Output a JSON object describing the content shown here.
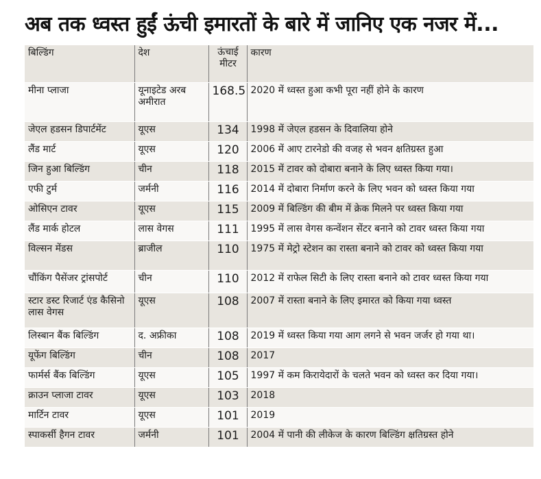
{
  "headline": "अब तक ध्वस्त हुईं ऊंची इमारतों के बारे में जानिए एक नजर में...",
  "table": {
    "headers": {
      "building": "बिल्डिंग",
      "country": "देश",
      "height_line1": "ऊंचाई",
      "height_line2": "मीटर",
      "reason": "कारण"
    },
    "rows": [
      {
        "building": "मीना प्लाजा",
        "country": "यूनाइटेड अरब अमीरात",
        "height": "168.5",
        "reason": "2020 में ध्वस्त हुआ  कभी पूरा नहीं होने के कारण"
      },
      {
        "building": "जेएल हडसन डिपार्टमेंट",
        "country": "यूएस",
        "height": "134",
        "reason": "1998 में जेएल हडसन के दिवालिया होने"
      },
      {
        "building": "लैंड मार्ट",
        "country": "यूएस",
        "height": "120",
        "reason": "2006 में आए टारनेडो की वजह से भवन क्षतिग्रस्त हुआ"
      },
      {
        "building": "जिन हुआ बिल्डिंग",
        "country": "चीन",
        "height": "118",
        "reason": "2015 में टावर को दोबारा बनाने के लिए ध्वस्त किया गया।"
      },
      {
        "building": "एफी टुर्म",
        "country": "जर्मनी",
        "height": "116",
        "reason": "2014 में दोबारा निर्माण करने के लिए भवन को ध्वस्त किया गया"
      },
      {
        "building": "ओसिएन टावर",
        "country": "यूएस",
        "height": "115",
        "reason": "2009 में बिल्डिंग की बीम में क्रेक मिलने पर ध्वस्त किया गया"
      },
      {
        "building": "लैंड मार्क होटल",
        "country": "लास वेगस",
        "height": "111",
        "reason": "1995 में लास वेगस कन्वेंशन सेंटर बनाने को टावर ध्वस्त किया गया"
      },
      {
        "building": "विल्सन मेंडस",
        "country": "ब्राजील",
        "height": "110",
        "reason": "1975 में मेट्रो स्टेशन का रास्ता बनाने को टावर को ध्वस्त किया गया"
      },
      {
        "building": "चौंकिंग पैसेंजर ट्रांसपोर्ट",
        "country": "चीन",
        "height": "110",
        "reason": "2012 में राफेल सिटी के लिए रास्ता बनाने को टावर ध्वस्त किया गया"
      },
      {
        "building": "स्टार डस्ट रिजार्ट एंड कैसिनो लास वेगस",
        "country": "यूएस",
        "height": "108",
        "reason": "2007 में रास्ता बनाने के लिए इमारत को किया गया ध्वस्त"
      },
      {
        "building": "लिस्बान बैंक बिल्डिंग",
        "country": "द. अफ्रीका",
        "height": "108",
        "reason": "2019 में ध्वस्त किया गया आग लगने से भवन जर्जर हो गया था।"
      },
      {
        "building": "यूफेंग बिल्डिंग",
        "country": "चीन",
        "height": "108",
        "reason": "2017"
      },
      {
        "building": "फार्मर्स बैंक बिल्डिंग",
        "country": "यूएस",
        "height": "105",
        "reason": "1997 में कम किरायेदारों के चलते भवन को ध्वस्त कर दिया गया।"
      },
      {
        "building": "क्राउन प्लाजा टावर",
        "country": "यूएस",
        "height": "103",
        "reason": "2018"
      },
      {
        "building": "मार्टिन टावर",
        "country": "यूएस",
        "height": "101",
        "reason": "2019"
      },
      {
        "building": "स्पाकर्सी हैगन टावर",
        "country": "जर्मनी",
        "height": "101",
        "reason": "2004 में पानी की लीकेज के कारण बिल्डिंग क्षतिग्रस्त होने"
      }
    ]
  }
}
